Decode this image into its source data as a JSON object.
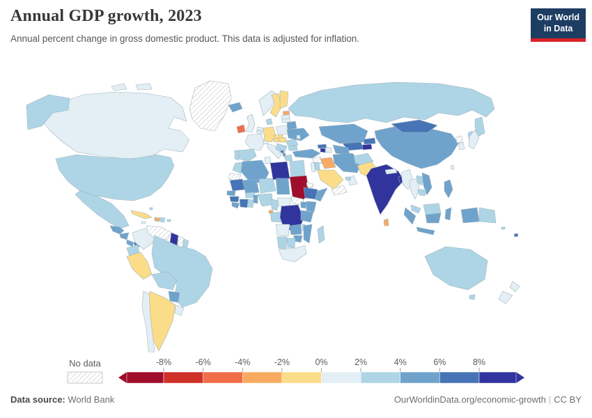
{
  "header": {
    "title": "Annual GDP growth, 2023",
    "subtitle": "Annual percent change in gross domestic product. This data is adjusted for inflation."
  },
  "logo": {
    "line1": "Our World",
    "line2": "in Data",
    "bg_color": "#1d3d63",
    "bar_color": "#d8232a"
  },
  "legend": {
    "no_data_label": "No data",
    "tick_labels": [
      "-8%",
      "-6%",
      "-4%",
      "-2%",
      "0%",
      "2%",
      "4%",
      "6%",
      "8%"
    ]
  },
  "footer": {
    "source_label": "Data source:",
    "source_value": "World Bank",
    "link": "OurWorldinData.org/economic-growth",
    "separator": "|",
    "license": "CC BY"
  },
  "chart_data": {
    "type": "choropleth",
    "title": "Annual GDP growth, 2023",
    "unit": "%",
    "year": 2023,
    "legend_position": "bottom",
    "no_data_style": "diagonal-hatch",
    "bins": [
      {
        "label": "< -8%",
        "color": "#a00d2a"
      },
      {
        "label": "-8% to -6%",
        "color": "#cf3028"
      },
      {
        "label": "-6% to -4%",
        "color": "#ef6d48"
      },
      {
        "label": "-4% to -2%",
        "color": "#f8aa60"
      },
      {
        "label": "-2% to 0%",
        "color": "#fbdc88"
      },
      {
        "label": "0% to 2%",
        "color": "#e3eff4"
      },
      {
        "label": "2% to 4%",
        "color": "#aed5e6"
      },
      {
        "label": "4% to 6%",
        "color": "#6fa3cc"
      },
      {
        "label": "6% to 8%",
        "color": "#4674b6"
      },
      {
        "label": "> 8%",
        "color": "#32349e"
      }
    ],
    "countries": {
      "Canada": "0% to 2%",
      "United States": "2% to 4%",
      "Greenland": "No data",
      "Mexico": "2% to 4%",
      "Guatemala": "4% to 6%",
      "Nicaragua": "4% to 6%",
      "Costa Rica": "4% to 6%",
      "Panama": "6% to 8%",
      "Cuba": "-2% to 0%",
      "Haiti": "-4% to -2%",
      "Dominican Republic": "2% to 4%",
      "Jamaica": "0% to 2%",
      "Puerto Rico": "2% to 4%",
      "Bahamas": "2% to 4%",
      "Colombia": "0% to 2%",
      "Venezuela": "No data",
      "Guyana": "> 8%",
      "Suriname": "No data",
      "French Guiana": "2% to 4%",
      "Ecuador": "2% to 4%",
      "Peru": "-2% to 0%",
      "Brazil": "2% to 4%",
      "Bolivia": "2% to 4%",
      "Paraguay": "4% to 6%",
      "Argentina": "-2% to 0%",
      "Chile": "0% to 2%",
      "Uruguay": "0% to 2%",
      "Iceland": "4% to 6%",
      "Ireland": "-6% to -4%",
      "United Kingdom": "0% to 2%",
      "Norway": "0% to 2%",
      "Sweden": "-2% to 0%",
      "Finland": "-2% to 0%",
      "Estonia": "-4% to -2%",
      "Latvia": "0% to 2%",
      "Lithuania": "0% to 2%",
      "Denmark": "2% to 4%",
      "Germany": "-2% to 0%",
      "Netherlands": "0% to 2%",
      "Belgium": "0% to 2%",
      "France": "0% to 2%",
      "Spain": "2% to 4%",
      "Portugal": "2% to 4%",
      "Italy": "0% to 2%",
      "Switzerland": "0% to 2%",
      "Austria": "-2% to 0%",
      "Czechia": "-2% to 0%",
      "Poland": "0% to 2%",
      "Belarus": "4% to 6%",
      "Ukraine": "4% to 6%",
      "Moldova": "0% to 2%",
      "Romania": "2% to 4%",
      "Hungary": "-2% to 0%",
      "Serbia": "2% to 4%",
      "Albania": "4% to 6%",
      "Montenegro": "6% to 8%",
      "Greece": "2% to 4%",
      "Bulgaria": "2% to 4%",
      "Russia": "2% to 4%",
      "Kazakhstan": "4% to 6%",
      "Uzbekistan": "6% to 8%",
      "Turkmenistan": "4% to 6%",
      "Kyrgyzstan": "6% to 8%",
      "Tajikistan": "> 8%",
      "Turkey": "4% to 6%",
      "Georgia": "6% to 8%",
      "Armenia": "> 8%",
      "Azerbaijan": "0% to 2%",
      "Syria": "No data",
      "Israel": "0% to 2%",
      "Jordan": "2% to 4%",
      "Iraq": "-4% to -2%",
      "Iran": "4% to 6%",
      "Saudi Arabia": "-2% to 0%",
      "Yemen": "No data",
      "Oman": "0% to 2%",
      "United Arab Emirates": "2% to 4%",
      "Afghanistan": "2% to 4%",
      "Pakistan": "-2% to 0%",
      "India": "> 8%",
      "Nepal": "0% to 2%",
      "Bangladesh": "> 8%",
      "Sri Lanka": "-4% to -2%",
      "China": "4% to 6%",
      "Mongolia": "6% to 8%",
      "Japan": "0% to 2%",
      "South Korea": "0% to 2%",
      "North Korea": "No data",
      "Taiwan": "0% to 2%",
      "Myanmar": "0% to 2%",
      "Thailand": "0% to 2%",
      "Laos": "2% to 4%",
      "Vietnam": "4% to 6%",
      "Cambodia": "2% to 4%",
      "Malaysia": "2% to 4%",
      "Indonesia": "4% to 6%",
      "Philippines": "4% to 6%",
      "Papua New Guinea": "2% to 4%",
      "Solomon Islands": "2% to 4%",
      "Fiji": "6% to 8%",
      "Australia": "2% to 4%",
      "New Zealand": "0% to 2%",
      "Morocco": "2% to 4%",
      "Western Sahara": "No data",
      "Algeria": "4% to 6%",
      "Tunisia": "0% to 2%",
      "Libya": "> 8%",
      "Egypt": "2% to 4%",
      "Mauritania": "6% to 8%",
      "Mali": "4% to 6%",
      "Niger": "2% to 4%",
      "Chad": "4% to 6%",
      "Sudan": "< -8%",
      "Eritrea": "No data",
      "South Sudan": "No data",
      "Ethiopia": "6% to 8%",
      "Somalia": "4% to 6%",
      "Senegal": "4% to 6%",
      "Guinea": "6% to 8%",
      "Sierra Leone": "4% to 6%",
      "Cote d'Ivoire": "6% to 8%",
      "Ghana": "2% to 4%",
      "Burkina Faso": "2% to 4%",
      "Benin": "4% to 6%",
      "Nigeria": "2% to 4%",
      "Cameroon": "2% to 4%",
      "Central African Republic": "0% to 2%",
      "Equatorial Guinea": "-4% to -2%",
      "Gabon": "2% to 4%",
      "Democratic Republic of Congo": "> 8%",
      "Uganda": "4% to 6%",
      "Kenya": "4% to 6%",
      "Tanzania": "4% to 6%",
      "Angola": "0% to 2%",
      "Zambia": "4% to 6%",
      "Malawi": "2% to 4%",
      "Mozambique": "4% to 6%",
      "Zimbabwe": "4% to 6%",
      "Namibia": "2% to 4%",
      "Botswana": "2% to 4%",
      "South Africa": "0% to 2%",
      "Madagascar": "2% to 4%"
    }
  }
}
